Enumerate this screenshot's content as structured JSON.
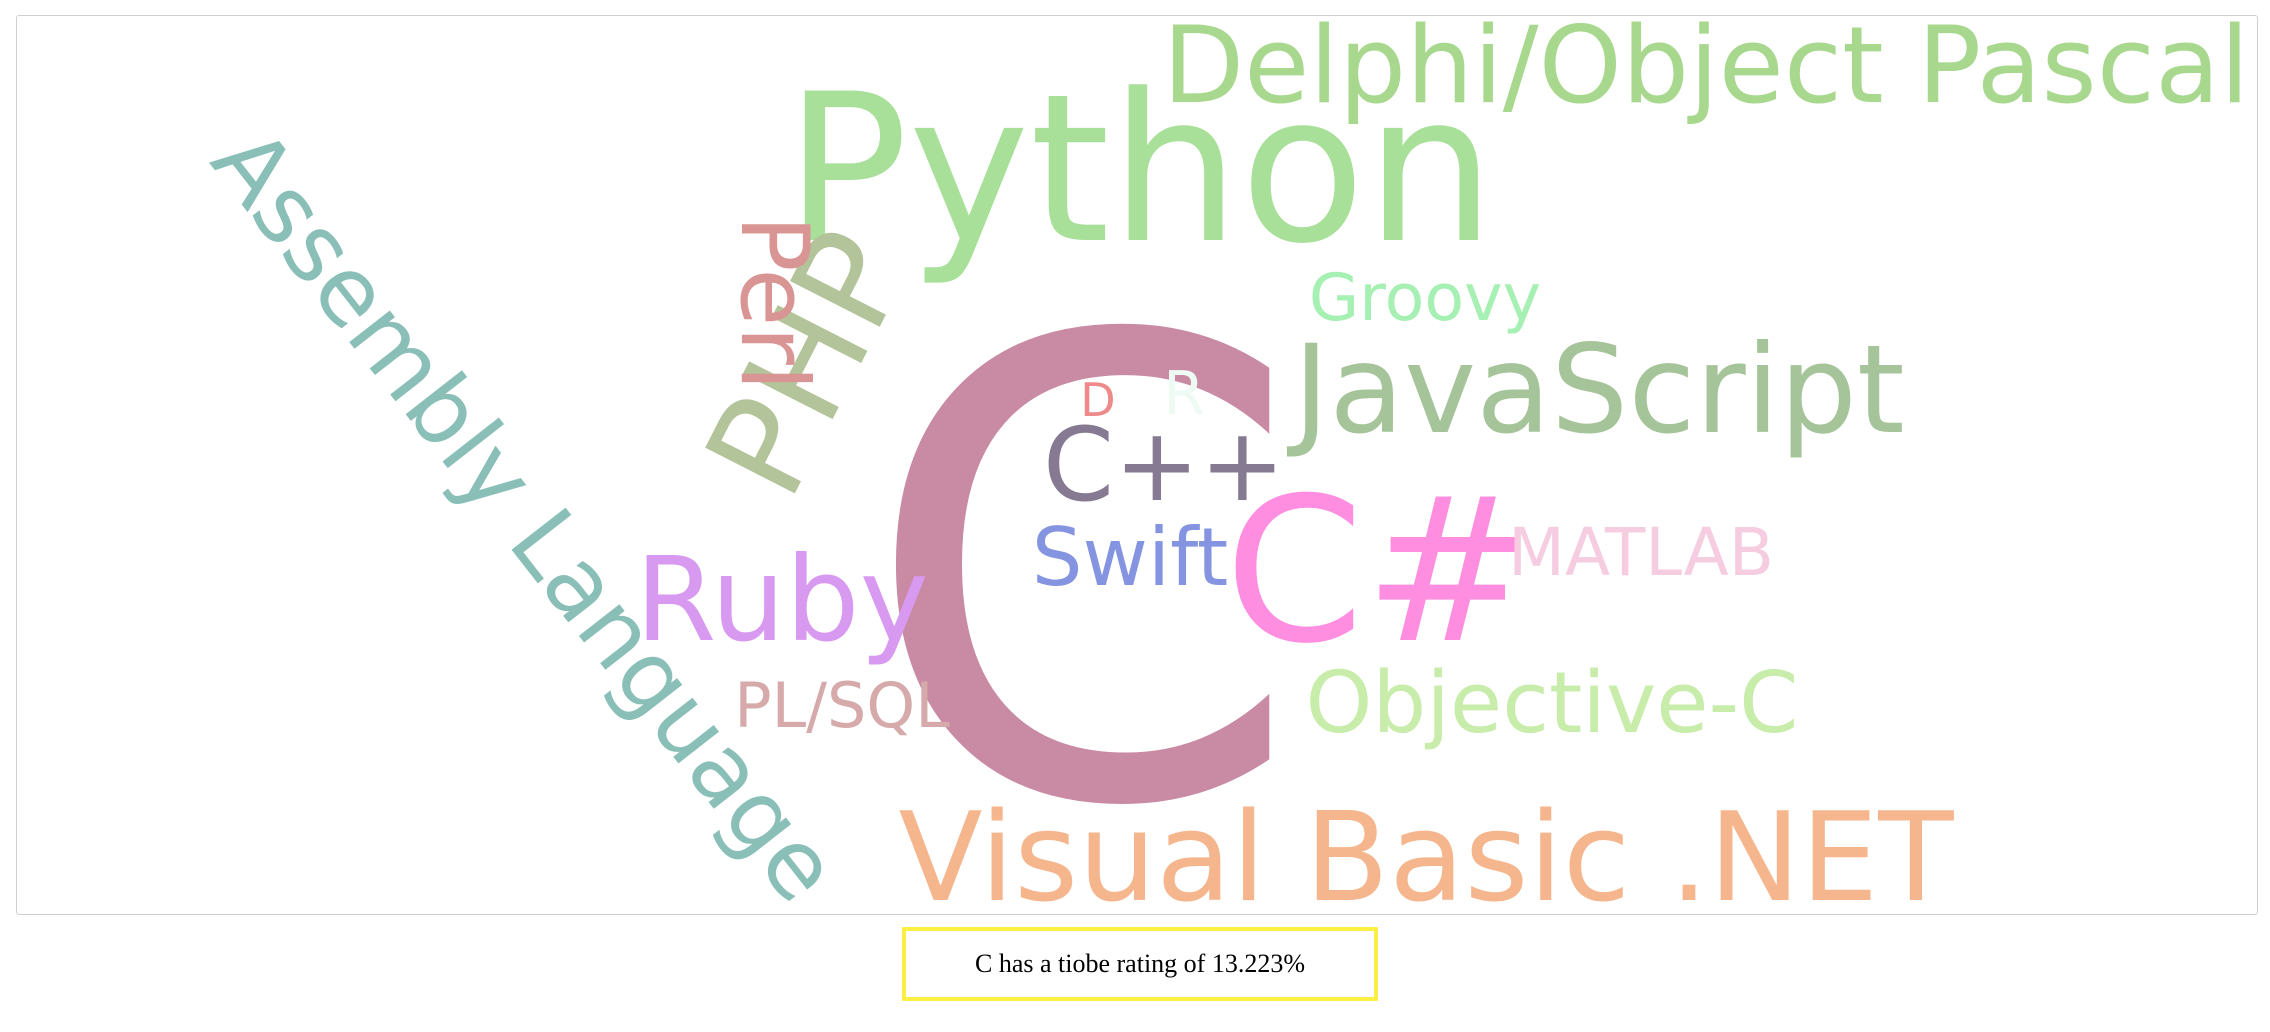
{
  "word_cloud": {
    "words": [
      {
        "id": "c",
        "text": "C",
        "color": "#c98aa3"
      },
      {
        "id": "python",
        "text": "Python",
        "color": "#a8e09a"
      },
      {
        "id": "delphi-object-pascal",
        "text": "Delphi/Object Pascal",
        "color": "#a8d88e"
      },
      {
        "id": "javascript",
        "text": "JavaScript",
        "color": "#a6c49a"
      },
      {
        "id": "assembly-language",
        "text": "Assembly Language",
        "color": "#8abfb8"
      },
      {
        "id": "php",
        "text": "PHP",
        "color": "#b3c49a"
      },
      {
        "id": "perl",
        "text": "Perl",
        "color": "#d99494"
      },
      {
        "id": "c-sharp",
        "text": "C#",
        "color": "#ff8ee0"
      },
      {
        "id": "ruby",
        "text": "Ruby",
        "color": "#d89af0"
      },
      {
        "id": "visual-basic-net",
        "text": "Visual Basic .NET",
        "color": "#f5b68e"
      },
      {
        "id": "objective-c",
        "text": "Objective-C",
        "color": "#c8ecaa"
      },
      {
        "id": "swift",
        "text": "Swift",
        "color": "#8594e0"
      },
      {
        "id": "cpp",
        "text": "C++",
        "color": "#857a92"
      },
      {
        "id": "matlab",
        "text": "MATLAB",
        "color": "#f5cce0"
      },
      {
        "id": "groovy",
        "text": "Groovy",
        "color": "#a6f0b4"
      },
      {
        "id": "pl-sql",
        "text": "PL/SQL",
        "color": "#d6aaaa"
      },
      {
        "id": "d",
        "text": "D",
        "color": "#ee8a8a"
      },
      {
        "id": "r",
        "text": "R",
        "color": "#eefaf4"
      }
    ]
  },
  "tooltip": {
    "text": "C has a tiobe rating of 13.223%",
    "border_color": "#ffee44"
  }
}
